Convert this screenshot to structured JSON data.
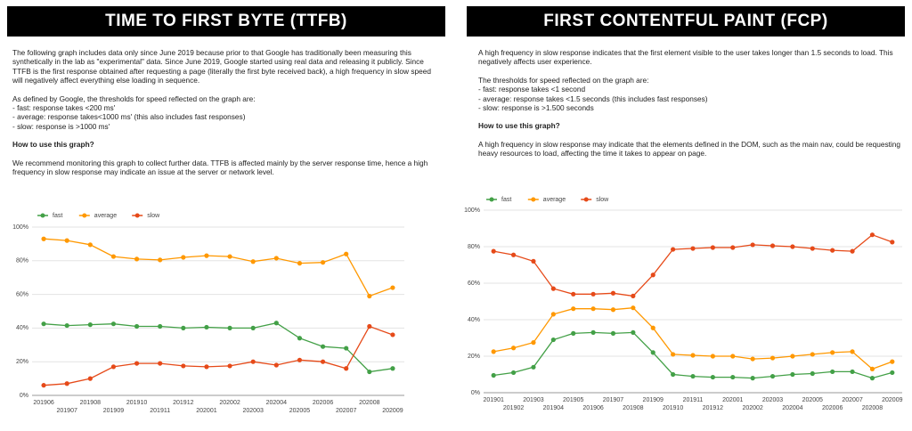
{
  "panels": [
    {
      "title": "TIME TO FIRST BYTE (TTFB)",
      "intro": "The following graph includes data only since June 2019 because prior to that Google has traditionally been measuring this synthetically in the lab as \"experimental\" data. Since June 2019, Google started using real data and releasing it publicly. Since TTFB is the first response obtained after requesting a page (literally the first byte received back), a high frequency in slow speed will negatively affect everything else loading in sequence.",
      "thresholds": [
        "As defined by Google, the thresholds for speed reflected on the graph are:",
        "- fast: response takes <200 ms'",
        "- average: response takes<1000 ms' (this also includes fast responses)",
        "- slow: response is >1000 ms'"
      ],
      "howto_heading": "How to use this graph?",
      "howto_text": "We recommend monitoring this graph to collect further data. TTFB is affected mainly by the server response time, hence a high frequency in slow response may indicate an issue at the server or network level."
    },
    {
      "title": "FIRST CONTENTFUL PAINT (FCP)",
      "intro": "A high frequency in slow response indicates that the first element visible to the user takes longer than 1.5 seconds to load. This negatively affects user experience.",
      "thresholds": [
        "The thresholds for speed reflected on the graph are:",
        "- fast: response takes <1 second",
        "- average: response takes <1.5 seconds (this includes fast responses)",
        "- slow: response is >1.500 seconds"
      ],
      "howto_heading": "How to use this graph?",
      "howto_text": "A high frequency in slow response may indicate that the elements defined in the DOM, such as the main nav, could be requesting heavy resources to load, affecting the time it takes to appear on page."
    }
  ],
  "chart_data": [
    {
      "type": "line",
      "categories": [
        "201906",
        "201907",
        "201908",
        "201909",
        "201910",
        "201911",
        "201912",
        "202001",
        "202002",
        "202003",
        "202004",
        "202005",
        "202006",
        "202007",
        "202008",
        "202009"
      ],
      "series": [
        {
          "name": "fast",
          "color": "#43a047",
          "values": [
            42.5,
            41.5,
            42,
            42.5,
            41,
            41,
            40,
            40.5,
            40,
            40,
            43,
            34,
            29,
            28,
            14,
            16
          ]
        },
        {
          "name": "average",
          "color": "#ff9800",
          "values": [
            93,
            92,
            89.5,
            82.5,
            81,
            80.5,
            82,
            83,
            82.5,
            79.5,
            81.5,
            78.5,
            79,
            84,
            59,
            64
          ]
        },
        {
          "name": "slow",
          "color": "#e64a19",
          "values": [
            6,
            7,
            10,
            17,
            19,
            19,
            17.5,
            17,
            17.5,
            20,
            18,
            21,
            20,
            16,
            41,
            36
          ]
        }
      ],
      "ylim": [
        0,
        100
      ],
      "yticks": [
        {
          "value": 0,
          "label": "0%"
        },
        {
          "value": 20,
          "label": "20%"
        },
        {
          "value": 40,
          "label": "40%"
        },
        {
          "value": 60,
          "label": "60%"
        },
        {
          "value": 80,
          "label": "80%"
        },
        {
          "value": 100,
          "label": "100%"
        }
      ],
      "grid": true
    },
    {
      "type": "line",
      "categories": [
        "201901",
        "201902",
        "201903",
        "201904",
        "201905",
        "201906",
        "201907",
        "201908",
        "201909",
        "201910",
        "201911",
        "201912",
        "202001",
        "202002",
        "202003",
        "202004",
        "202005",
        "202006",
        "202007",
        "202008",
        "202009"
      ],
      "series": [
        {
          "name": "fast",
          "color": "#43a047",
          "values": [
            9.5,
            11,
            14,
            29,
            32.5,
            33,
            32.5,
            33,
            22,
            10,
            9,
            8.5,
            8.5,
            8,
            9,
            10,
            10.5,
            11.5,
            11.5,
            8,
            11
          ]
        },
        {
          "name": "average",
          "color": "#ff9800",
          "values": [
            22.5,
            24.5,
            27.5,
            43,
            46,
            46,
            45.5,
            46.5,
            35.5,
            21,
            20.5,
            20,
            20,
            18.5,
            19,
            20,
            21,
            22,
            22.5,
            13,
            17
          ]
        },
        {
          "name": "slow",
          "color": "#e64a19",
          "values": [
            77.5,
            75.5,
            72,
            57,
            54,
            54,
            54.5,
            53,
            64.5,
            78.5,
            79,
            79.5,
            79.5,
            81,
            80.5,
            80,
            79,
            78,
            77.5,
            86.5,
            82.5
          ]
        }
      ],
      "ylim": [
        0,
        100
      ],
      "yticks": [
        {
          "value": 0,
          "label": "0%"
        },
        {
          "value": 20,
          "label": "20%"
        },
        {
          "value": 40,
          "label": "40%"
        },
        {
          "value": 60,
          "label": "60%"
        },
        {
          "value": 80,
          "label": "80%"
        },
        {
          "value": 100,
          "label": "100%"
        }
      ],
      "grid": true
    }
  ]
}
